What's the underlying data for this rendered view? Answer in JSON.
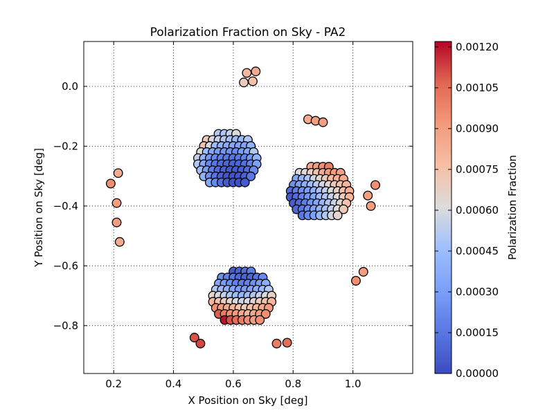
{
  "chart_data": {
    "type": "scatter",
    "title": "Polarization Fraction on Sky - PA2",
    "xlabel": "X Position on Sky [deg]",
    "ylabel": "Y Position on Sky [deg]",
    "xlim": [
      0.1,
      1.2
    ],
    "ylim": [
      -0.96,
      0.15
    ],
    "x_ticks": [
      0.2,
      0.4,
      0.6,
      0.8,
      1.0
    ],
    "y_ticks": [
      0.0,
      -0.2,
      -0.4,
      -0.6,
      -0.8
    ],
    "x_tick_labels": [
      "0.2",
      "0.4",
      "0.6",
      "0.8",
      "1.0"
    ],
    "y_tick_labels": [
      "0.0",
      "−0.2",
      "−0.4",
      "−0.6",
      "−0.8"
    ],
    "grid": true,
    "colorbar": {
      "label": "Polarization Fraction",
      "min": 0.0,
      "max": 0.00122,
      "colormap": "coolwarm",
      "ticks": [
        0.0,
        0.00015,
        0.0003,
        0.00045,
        0.0006,
        0.00075,
        0.0009,
        0.00105,
        0.0012
      ],
      "tick_labels": [
        "0.00000",
        "0.00015",
        "0.00030",
        "0.00045",
        "0.00060",
        "0.00075",
        "0.00090",
        "0.00105",
        "0.00120"
      ]
    },
    "point_style": {
      "edge_color": "#000000",
      "marker": "circle"
    },
    "wafers": [
      {
        "name": "upper",
        "center": [
          0.58,
          -0.24
        ],
        "rows": [
          [
            0.0005,
            0.0005,
            0.00055,
            0.0006
          ],
          [
            0.0007,
            0.0006,
            0.00055,
            0.0005,
            0.00047,
            0.00045,
            0.00043,
            0.0005
          ],
          [
            0.00075,
            0.0006,
            0.00045,
            0.0004,
            0.00037,
            0.00035,
            0.00033,
            0.00033,
            0.0004
          ],
          [
            0.00062,
            0.00045,
            0.00035,
            0.0003,
            0.00027,
            0.00025,
            0.00023,
            0.0003,
            0.00035,
            0.0005
          ],
          [
            0.00055,
            0.0004,
            0.00028,
            0.00022,
            0.00018,
            0.00016,
            0.00014,
            0.00016,
            0.0002,
            0.00028,
            0.0004
          ],
          [
            0.0005,
            0.00035,
            0.00022,
            0.00015,
            0.00011,
            9e-05,
            8e-05,
            0.0001,
            0.00013,
            0.0002,
            0.00032
          ],
          [
            0.00045,
            0.0003,
            0.00018,
            0.00011,
            7e-05,
            5e-05,
            5e-05,
            7e-05,
            0.00012,
            0.00022
          ],
          [
            0.0004,
            0.00025,
            0.00015,
            8e-05,
            4e-05,
            3e-05,
            4e-05,
            8e-05,
            0.00015
          ],
          [
            0.00035,
            0.00022,
            0.00012,
            6e-05,
            3e-05,
            2e-05,
            5e-05
          ]
        ]
      },
      {
        "name": "right",
        "center": [
          0.89,
          -0.35
        ],
        "rows": [
          [
            0.00085,
            0.0009,
            0.00095,
            0.001
          ],
          [
            0.0006,
            0.00063,
            0.00068,
            0.00075,
            0.00085,
            0.0009,
            0.0009,
            0.00088
          ],
          [
            0.00035,
            0.00042,
            0.0005,
            0.00058,
            0.00065,
            0.00072,
            0.00078,
            0.00082,
            0.00085
          ],
          [
            0.00025,
            0.0003,
            0.00038,
            0.00045,
            0.00052,
            0.00058,
            0.00065,
            0.0007,
            0.00075,
            0.0008
          ],
          [
            0.00012,
            0.00018,
            0.00025,
            0.00032,
            0.0004,
            0.00048,
            0.00055,
            0.0006,
            0.00068,
            0.00075,
            0.00082
          ],
          [
            5e-05,
            0.00012,
            0.0002,
            0.00028,
            0.00035,
            0.00045,
            0.0005,
            0.00056,
            0.00062,
            0.0007,
            0.0008
          ],
          [
            6e-05,
            0.0001,
            0.00018,
            0.00026,
            0.00035,
            0.00042,
            0.0005,
            0.00056,
            0.00065,
            0.00075
          ],
          [
            0.0001,
            0.00016,
            0.00024,
            0.00032,
            0.0004,
            0.00048,
            0.00055,
            0.00062,
            0.00072
          ],
          [
            0.00015,
            0.00022,
            0.00032,
            0.00042,
            0.0005,
            0.00058,
            0.00065
          ]
        ]
      },
      {
        "name": "lower",
        "center": [
          0.63,
          -0.7
        ],
        "rows": [
          [
            5e-05,
            8e-05,
            0.00012,
            0.00018
          ],
          [
            0.00025,
            0.0002,
            0.00015,
            0.0001,
            8e-05,
            0.0001,
            0.00015,
            0.00022
          ],
          [
            0.00035,
            0.0003,
            0.00025,
            0.0002,
            0.00018,
            0.0002,
            0.00025,
            0.0003,
            0.00038
          ],
          [
            0.0005,
            0.00045,
            0.0004,
            0.00035,
            0.0003,
            0.0003,
            0.00033,
            0.00038,
            0.00045,
            0.00052
          ],
          [
            0.00065,
            0.0006,
            0.00055,
            0.0005,
            0.00045,
            0.00042,
            0.00045,
            0.0005,
            0.00055,
            0.0006,
            0.00068
          ],
          [
            0.0008,
            0.00075,
            0.0007,
            0.00065,
            0.0006,
            0.00057,
            0.0006,
            0.00065,
            0.0007,
            0.00075,
            0.0008
          ],
          [
            0.00095,
            0.0009,
            0.00085,
            0.0008,
            0.00075,
            0.0007,
            0.00075,
            0.0008,
            0.00085,
            0.0009
          ],
          [
            0.00108,
            0.001,
            0.00095,
            0.0009,
            0.00085,
            0.0008,
            0.00085,
            0.0009,
            0.00095
          ],
          [
            0.0012,
            0.0011,
            0.00105,
            0.001,
            0.00095,
            0.0009,
            0.00095
          ]
        ]
      }
    ],
    "extra_points": [
      {
        "x": 0.19,
        "y": -0.325,
        "v": 0.00095
      },
      {
        "x": 0.21,
        "y": -0.39,
        "v": 0.0009
      },
      {
        "x": 0.21,
        "y": -0.455,
        "v": 0.0009
      },
      {
        "x": 0.22,
        "y": -0.52,
        "v": 0.00085
      },
      {
        "x": 0.215,
        "y": -0.29,
        "v": 0.00085
      },
      {
        "x": 0.645,
        "y": 0.045,
        "v": 0.0008
      },
      {
        "x": 0.675,
        "y": 0.05,
        "v": 0.00085
      },
      {
        "x": 0.635,
        "y": 0.013,
        "v": 0.0007
      },
      {
        "x": 0.665,
        "y": 0.017,
        "v": 0.00075
      },
      {
        "x": 0.85,
        "y": -0.11,
        "v": 0.00085
      },
      {
        "x": 0.875,
        "y": -0.115,
        "v": 0.0009
      },
      {
        "x": 0.9,
        "y": -0.12,
        "v": 0.0009
      },
      {
        "x": 1.075,
        "y": -0.33,
        "v": 0.00095
      },
      {
        "x": 1.05,
        "y": -0.365,
        "v": 0.0009
      },
      {
        "x": 1.06,
        "y": -0.4,
        "v": 0.0009
      },
      {
        "x": 1.035,
        "y": -0.62,
        "v": 0.0009
      },
      {
        "x": 1.01,
        "y": -0.65,
        "v": 0.00095
      },
      {
        "x": 0.745,
        "y": -0.86,
        "v": 0.001
      },
      {
        "x": 0.78,
        "y": -0.857,
        "v": 0.00105
      },
      {
        "x": 0.47,
        "y": -0.84,
        "v": 0.0011
      },
      {
        "x": 0.49,
        "y": -0.86,
        "v": 0.00112
      }
    ]
  }
}
